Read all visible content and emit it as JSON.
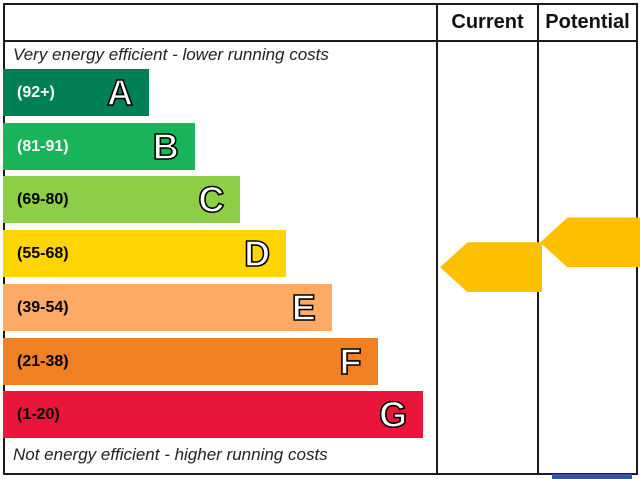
{
  "headers": {
    "current": "Current",
    "potential": "Potential"
  },
  "captions": {
    "top": "Very energy efficient - lower running costs",
    "bottom": "Not energy efficient - higher running costs"
  },
  "chart_data": {
    "type": "bar",
    "categories": [
      "A",
      "B",
      "C",
      "D",
      "E",
      "F",
      "G"
    ],
    "bands": [
      {
        "letter": "A",
        "range": "(92+)",
        "min": 92,
        "max": 100,
        "color": "#008054",
        "text_color": "#ffffff"
      },
      {
        "letter": "B",
        "range": "(81-91)",
        "min": 81,
        "max": 91,
        "color": "#19b459",
        "text_color": "#ffffff"
      },
      {
        "letter": "C",
        "range": "(69-80)",
        "min": 69,
        "max": 80,
        "color": "#8dce46",
        "text_color": "#000000"
      },
      {
        "letter": "D",
        "range": "(55-68)",
        "min": 55,
        "max": 68,
        "color": "#ffd500",
        "text_color": "#000000"
      },
      {
        "letter": "E",
        "range": "(39-54)",
        "min": 39,
        "max": 54,
        "color": "#fcaa65",
        "text_color": "#000000"
      },
      {
        "letter": "F",
        "range": "(21-38)",
        "min": 21,
        "max": 38,
        "color": "#ef8023",
        "text_color": "#000000"
      },
      {
        "letter": "G",
        "range": "(1-20)",
        "min": 1,
        "max": 20,
        "color": "#e9153b",
        "text_color": "#000000"
      }
    ],
    "current": 56,
    "potential": 66,
    "arrow_color": "#fdc000"
  }
}
